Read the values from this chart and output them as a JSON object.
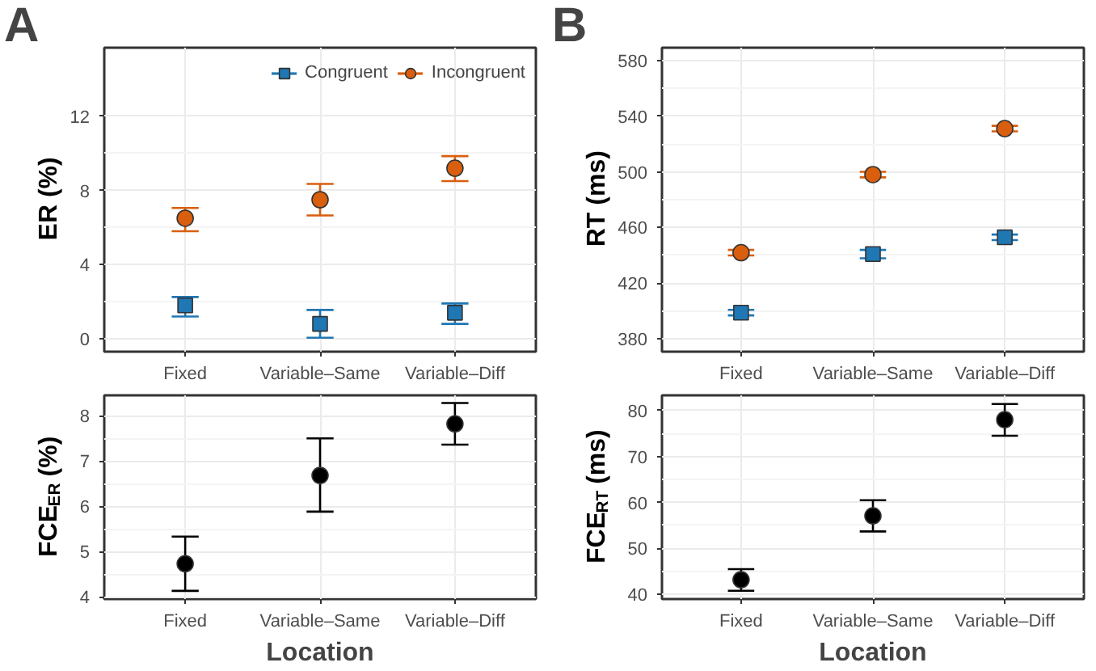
{
  "chart_data": [
    {
      "type": "scatter",
      "title": "A",
      "ylabel": "ER (%)",
      "categories": [
        "Fixed",
        "Variable–Same",
        "Variable–Diff"
      ],
      "ylim": [
        -0.7,
        15.7
      ],
      "yticks": [
        0,
        4,
        8,
        12
      ],
      "grid": true,
      "legend": "top right",
      "tick_labels": "xy",
      "series": [
        {
          "name": "Congruent",
          "color": "#1f77b4",
          "marker": "square",
          "values": [
            1.8,
            0.8,
            1.4
          ],
          "errors": [
            [
              1.2,
              2.25
            ],
            [
              0.05,
              1.55
            ],
            [
              0.8,
              1.9
            ]
          ]
        },
        {
          "name": "Incongruent",
          "color": "#d95f0e",
          "marker": "circle",
          "values": [
            6.5,
            7.5,
            9.2
          ],
          "errors": [
            [
              5.8,
              7.05
            ],
            [
              6.65,
              8.35
            ],
            [
              8.5,
              9.85
            ]
          ]
        }
      ]
    },
    {
      "type": "scatter",
      "title": "B",
      "ylabel": "RT (ms)",
      "categories": [
        "Fixed",
        "Variable–Same",
        "Variable–Diff"
      ],
      "ylim": [
        371,
        589
      ],
      "yticks": [
        380,
        420,
        460,
        500,
        540,
        580
      ],
      "grid": true,
      "series": [
        {
          "color": "#1f77b4",
          "marker": "square",
          "values": [
            399,
            441,
            453
          ],
          "errors": [
            [
              397,
              401
            ],
            [
              438,
              444
            ],
            [
              451,
              455
            ]
          ]
        },
        {
          "color": "#d95f0e",
          "marker": "circle",
          "values": [
            442,
            498,
            531
          ],
          "errors": [
            [
              440,
              444
            ],
            [
              496,
              500
            ],
            [
              529,
              533
            ]
          ]
        }
      ]
    },
    {
      "type": "scatter",
      "ylabel": "FCE$_{ER}$ (%)",
      "xlabel": "Location",
      "categories": [
        "Fixed",
        "Variable–Same",
        "Variable–Diff"
      ],
      "ylim": [
        3.95,
        8.45
      ],
      "yticks": [
        4,
        5,
        6,
        7,
        8
      ],
      "grid": true,
      "marker": "circle",
      "series": [
        {
          "color": "#000000",
          "values": [
            4.73,
            6.68,
            7.82
          ],
          "errors": [
            [
              4.13,
              5.33
            ],
            [
              5.88,
              7.5
            ],
            [
              7.36,
              8.28
            ]
          ]
        }
      ]
    },
    {
      "type": "scatter",
      "ylabel": "FCE$_{RT}$ (ms)",
      "xlabel": "Location",
      "categories": [
        "Fixed",
        "Variable–Same",
        "Variable–Diff"
      ],
      "ylim": [
        39,
        83.3
      ],
      "yticks": [
        40,
        50,
        60,
        70,
        80
      ],
      "grid": true,
      "marker": "circle",
      "series": [
        {
          "color": "#000000",
          "values": [
            43.2,
            57.1,
            78
          ],
          "errors": [
            [
              40.8,
              45.5
            ],
            [
              53.7,
              60.5
            ],
            [
              74.5,
              81.4
            ]
          ]
        }
      ]
    }
  ]
}
